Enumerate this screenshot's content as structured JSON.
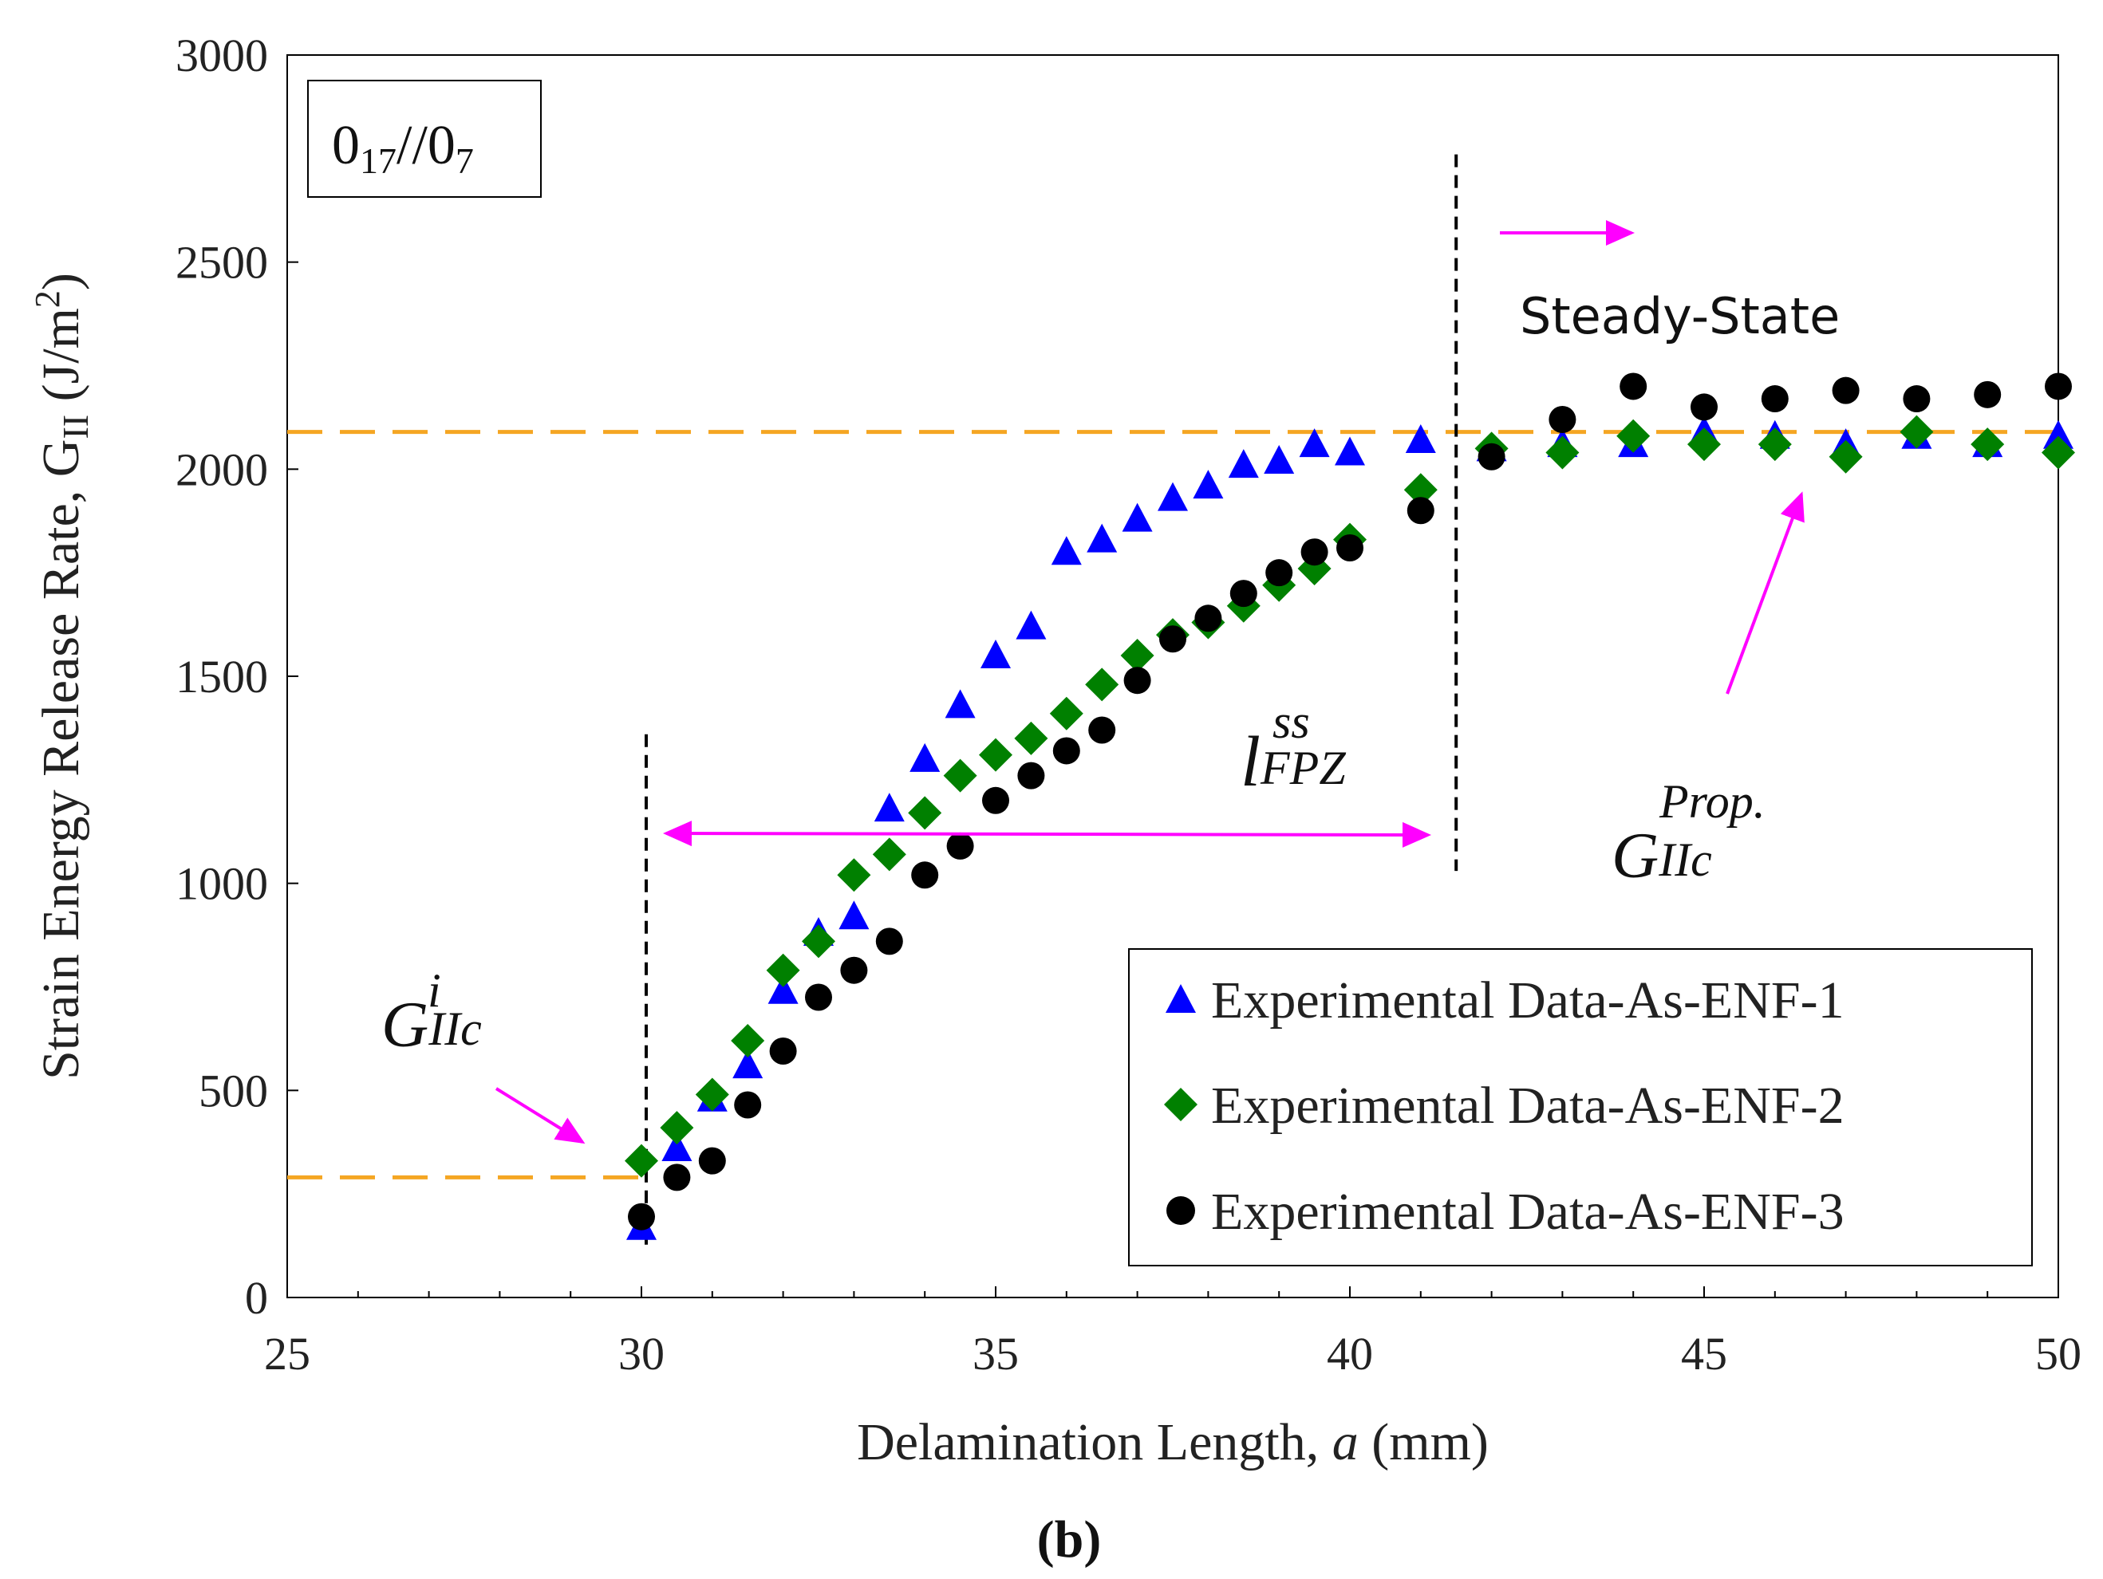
{
  "chart_data": {
    "type": "scatter",
    "title": "",
    "xlabel_prefix": "Delamination Length, ",
    "xlabel_var": "a",
    "xlabel_unit": " (mm)",
    "ylabel_prefix": "Strain Energy Release Rate, G",
    "ylabel_sub": "II",
    "ylabel_unit_start": " (J/m",
    "ylabel_unit_sup": "2",
    "ylabel_unit_end": ")",
    "xlim": [
      25,
      50
    ],
    "ylim": [
      0,
      3000
    ],
    "x_ticks": [
      25,
      30,
      35,
      40,
      45,
      50
    ],
    "y_ticks": [
      0,
      500,
      1000,
      1500,
      2000,
      2500,
      3000
    ],
    "legend_position": "bottom-right",
    "series": [
      {
        "name": "Experimental Data-As-ENF-1",
        "marker": "triangle",
        "color": "#0000ff",
        "x": [
          30,
          30.5,
          31,
          31.5,
          32,
          32.5,
          33,
          33.5,
          34,
          34.5,
          35,
          35.5,
          36,
          36.5,
          37,
          37.5,
          38,
          38.5,
          39,
          39.5,
          40,
          41,
          42,
          43,
          44,
          45,
          46,
          47,
          48,
          49,
          50
        ],
        "y": [
          170,
          360,
          480,
          560,
          740,
          880,
          920,
          1180,
          1300,
          1430,
          1550,
          1620,
          1800,
          1830,
          1880,
          1930,
          1960,
          2010,
          2020,
          2060,
          2040,
          2070,
          2050,
          2060,
          2060,
          2090,
          2080,
          2060,
          2080,
          2060,
          2080
        ]
      },
      {
        "name": "Experimental Data-As-ENF-2",
        "marker": "diamond",
        "color": "#008000",
        "x": [
          30,
          30.5,
          31,
          31.5,
          32,
          32.5,
          33,
          33.5,
          34,
          34.5,
          35,
          35.5,
          36,
          36.5,
          37,
          37.5,
          38,
          38.5,
          39,
          39.5,
          40,
          41,
          42,
          43,
          44,
          45,
          46,
          47,
          48,
          49,
          50
        ],
        "y": [
          330,
          410,
          490,
          620,
          790,
          860,
          1020,
          1070,
          1170,
          1260,
          1310,
          1350,
          1410,
          1480,
          1550,
          1600,
          1630,
          1670,
          1720,
          1760,
          1830,
          1950,
          2050,
          2040,
          2080,
          2060,
          2060,
          2030,
          2090,
          2060,
          2040
        ]
      },
      {
        "name": "Experimental Data-As-ENF-3",
        "marker": "circle",
        "color": "#000000",
        "x": [
          30,
          30.5,
          31,
          31.5,
          32,
          32.5,
          33,
          33.5,
          34,
          34.5,
          35,
          35.5,
          36,
          36.5,
          37,
          37.5,
          38,
          38.5,
          39,
          39.5,
          40,
          41,
          42,
          43,
          44,
          45,
          46,
          47,
          48,
          49,
          50
        ],
        "y": [
          195,
          290,
          330,
          465,
          595,
          725,
          790,
          860,
          1020,
          1090,
          1200,
          1260,
          1320,
          1370,
          1490,
          1590,
          1640,
          1700,
          1750,
          1800,
          1810,
          1900,
          2030,
          2120,
          2200,
          2150,
          2170,
          2190,
          2170,
          2180,
          2200
        ]
      }
    ],
    "reference_lines": {
      "initiation_level": 290,
      "propagation_level": 2090,
      "initiation_x": 30,
      "steady_state_x": 41.5
    },
    "annotations": {
      "layup_box_main_1": "0",
      "layup_box_sub_1": "17",
      "layup_box_mid": "//0",
      "layup_box_sub_2": "7",
      "steady_state": "Steady-State",
      "g_init_main": "G",
      "g_init_sup": "i",
      "g_init_sub": "IIc",
      "g_prop_main": "G",
      "g_prop_sup": "Prop.",
      "g_prop_sub": "IIc",
      "fpz_main": "l",
      "fpz_sup": "ss",
      "fpz_sub": "FPZ"
    },
    "caption_open": "(",
    "caption_letter": "b",
    "caption_close": ")",
    "colors": {
      "reference_line": "#f5a623",
      "arrow": "#ff00ff",
      "axis": "#000000"
    }
  }
}
